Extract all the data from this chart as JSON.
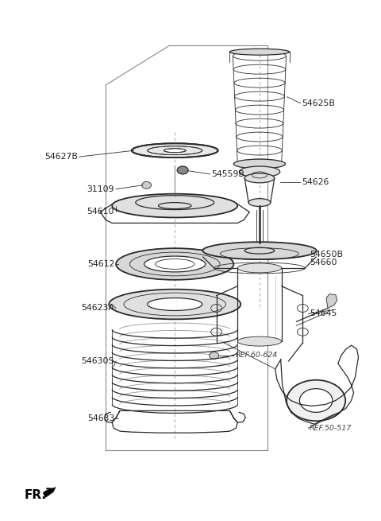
{
  "bg_color": "#ffffff",
  "line_color": "#2a2a2a",
  "label_color": "#222222",
  "ref_color": "#444444",
  "figsize": [
    4.8,
    6.55
  ],
  "dpi": 100,
  "xlim": [
    0,
    480
  ],
  "ylim": [
    0,
    655
  ]
}
